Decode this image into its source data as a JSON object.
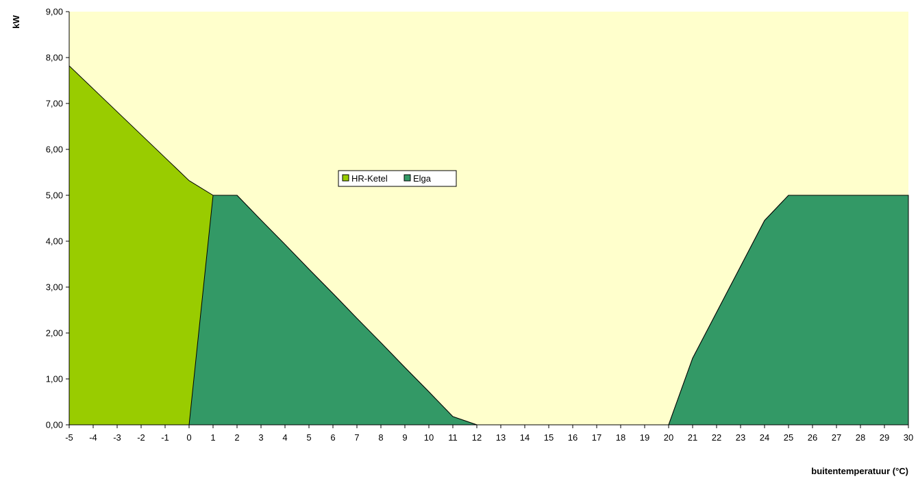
{
  "chart_data": {
    "type": "area",
    "title": "",
    "xlabel": "buitentemperatuur (°C)",
    "ylabel": "kW",
    "x": [
      -5,
      -4,
      -3,
      -2,
      -1,
      0,
      1,
      2,
      3,
      4,
      5,
      6,
      7,
      8,
      9,
      10,
      11,
      12,
      13,
      14,
      15,
      16,
      17,
      18,
      19,
      20,
      21,
      22,
      23,
      24,
      25,
      26,
      27,
      28,
      29,
      30
    ],
    "xlim": [
      -5,
      30
    ],
    "ylim": [
      0,
      9
    ],
    "y_ticks": [
      "0,00",
      "1,00",
      "2,00",
      "3,00",
      "4,00",
      "5,00",
      "6,00",
      "7,00",
      "8,00",
      "9,00"
    ],
    "grid": false,
    "legend_position": "center-left",
    "colors": {
      "plot_background": "#FFFFCC",
      "HR-Ketel": "#99CC00",
      "Elga": "#339966",
      "outline": "#000000"
    },
    "series": [
      {
        "name": "HR-Ketel",
        "values": [
          7.82,
          7.32,
          6.82,
          6.32,
          5.82,
          5.32,
          5.0,
          5.0,
          4.46,
          3.93,
          3.39,
          2.86,
          2.32,
          1.79,
          1.25,
          0.72,
          0.18,
          0.0,
          0.0,
          0.0,
          0.0,
          0.0,
          0.0,
          0.0,
          0.0,
          0.0,
          1.45,
          2.45,
          3.45,
          4.45,
          5.0,
          5.0,
          5.0,
          5.0,
          5.0,
          5.0
        ]
      },
      {
        "name": "Elga",
        "values": [
          0.0,
          0.0,
          0.0,
          0.0,
          0.0,
          0.0,
          5.0,
          5.0,
          4.46,
          3.93,
          3.39,
          2.86,
          2.32,
          1.79,
          1.25,
          0.72,
          0.18,
          0.0,
          0.0,
          0.0,
          0.0,
          0.0,
          0.0,
          0.0,
          0.0,
          0.0,
          1.45,
          2.45,
          3.45,
          4.45,
          5.0,
          5.0,
          5.0,
          5.0,
          5.0,
          5.0
        ]
      }
    ]
  }
}
